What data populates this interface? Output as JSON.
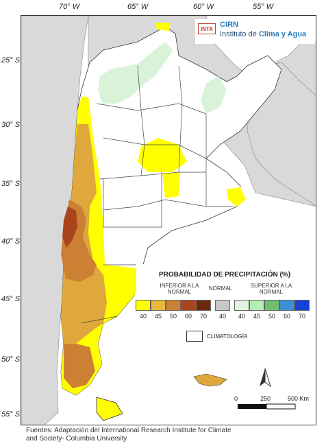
{
  "axes": {
    "longitude_labels": [
      "70° W",
      "65° W",
      "60° W",
      "55° W"
    ],
    "latitude_labels": [
      "25° S",
      "30° S",
      "35° S",
      "40° S",
      "45° S",
      "50° S",
      "55° S"
    ]
  },
  "logo": {
    "inta": "INTA",
    "cirn": "CIRN",
    "institute_prefix": "Instituto de ",
    "institute_emph": "Clima y Agua"
  },
  "legend": {
    "title": "PROBABILIDAD DE PRECIPITACIÓN (%)",
    "below_label": "INFERIOR A LA NORMAL",
    "normal_label": "NORMAL",
    "above_label": "SUPERIOR A LA NORMAL",
    "below_values": [
      "40",
      "45",
      "50",
      "60",
      "70"
    ],
    "normal_value": "40",
    "above_values": [
      "40",
      "45",
      "50",
      "60",
      "70"
    ],
    "below_colors": [
      "#ffff00",
      "#e8b93a",
      "#cc8033",
      "#a9441c",
      "#6b2a0d"
    ],
    "normal_color": "#c8c8c8",
    "above_colors": [
      "#e0f5e0",
      "#b5edb5",
      "#6fbf6f",
      "#3c8fd6",
      "#1740d9"
    ],
    "climatology_label": "CLIMATOLOGÍA"
  },
  "scale": {
    "labels": [
      "0",
      "250",
      "500 Km"
    ]
  },
  "source": {
    "line1": "Fuentes: Adaptación del International Research Institute for Climate",
    "line2": "and Society- Columbia University"
  }
}
